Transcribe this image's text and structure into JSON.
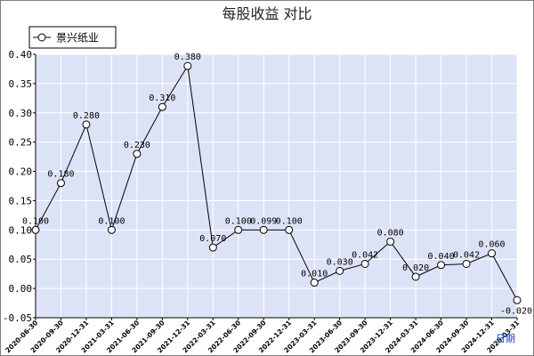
{
  "chart_data": {
    "type": "line",
    "title": "每股收益  对比",
    "categories": [
      "2020-06-30",
      "2020-09-30",
      "2020-12-31",
      "2021-03-31",
      "2021-06-30",
      "2021-09-30",
      "2021-12-31",
      "2022-03-31",
      "2022-06-30",
      "2022-09-30",
      "2022-12-31",
      "2023-03-31",
      "2023-06-30",
      "2023-09-30",
      "2023-12-31",
      "2024-03-31",
      "2024-06-30",
      "2024-09-30",
      "2024-12-31",
      "2025-03-31"
    ],
    "tick_labels": [
      "2020-06-30",
      "2020-09-30",
      "2020-12-31",
      "2021-03-31",
      "2021-06-30",
      "2021-09-30",
      "2021-12-31",
      "2022-03-31",
      "2022-06-30",
      "2022-09-30",
      "2022-12-31",
      "2023-03-31",
      "2023-06-30",
      "2023-09-30",
      "2023-12-31",
      "2024-03-31",
      "2024-06-30",
      "2024-09-30",
      "2024-12-31",
      "2025-03-31"
    ],
    "series": [
      {
        "name": "景兴纸业",
        "values": [
          0.1,
          0.18,
          0.28,
          0.1,
          0.23,
          0.31,
          0.38,
          0.07,
          0.1,
          0.1,
          0.1,
          0.01,
          0.03,
          0.042,
          0.08,
          0.02,
          0.04,
          0.042,
          0.06,
          -0.02
        ],
        "labels": [
          "0.100",
          "0.180",
          "0.280",
          "0.100",
          "0.230",
          "0.310",
          "0.380",
          "0.070",
          "0.100",
          "0.099",
          "0.100",
          "0.010",
          "0.030",
          "0.042",
          "0.080",
          "0.020",
          "0.040",
          "0.042",
          "0.060",
          "-0.020"
        ],
        "color": "#000000"
      }
    ],
    "y_ticks": [
      "0.40",
      "0.35",
      "0.30",
      "0.25",
      "0.20",
      "0.15",
      "0.10",
      "0.05",
      "0.00",
      "-0.05"
    ],
    "ylim": [
      -0.05,
      0.4
    ],
    "x_axis_label": "日期",
    "legend": "top-left",
    "grid": true,
    "plot_bg": "#dde3f7",
    "grid_color": "#ffffff"
  }
}
